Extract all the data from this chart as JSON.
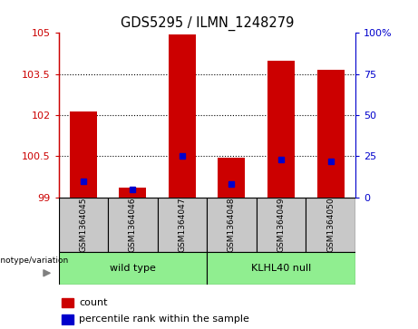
{
  "title": "GDS5295 / ILMN_1248279",
  "samples": [
    "GSM1364045",
    "GSM1364046",
    "GSM1364047",
    "GSM1364048",
    "GSM1364049",
    "GSM1364050"
  ],
  "count_values": [
    102.15,
    99.35,
    104.95,
    100.45,
    104.0,
    103.65
  ],
  "percentile_values": [
    10,
    5,
    25,
    8,
    23,
    22
  ],
  "ylim_left": [
    99,
    105
  ],
  "ylim_right": [
    0,
    100
  ],
  "yticks_left": [
    99,
    100.5,
    102,
    103.5,
    105
  ],
  "yticks_right": [
    0,
    25,
    50,
    75,
    100
  ],
  "bar_color": "#CC0000",
  "dot_color": "#0000CC",
  "bar_base": 99,
  "right_axis_color": "#0000CC",
  "left_axis_color": "#CC0000",
  "sample_box_color": "#C8C8C8",
  "group1_label": "wild type",
  "group2_label": "KLHL40 null",
  "group_color": "#90EE90",
  "geno_label": "genotype/variation",
  "legend_count_label": "count",
  "legend_percentile_label": "percentile rank within the sample",
  "right_axis_top_label": "100%"
}
